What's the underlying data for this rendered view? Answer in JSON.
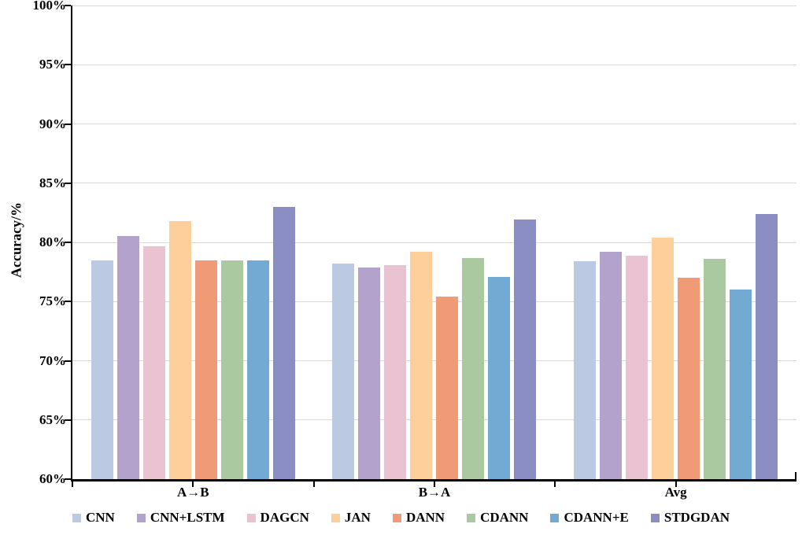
{
  "chart_data": {
    "type": "bar",
    "title": "",
    "xlabel": "",
    "ylabel": "Accuracy/%",
    "ylim": [
      60,
      100
    ],
    "ytick_step": 5,
    "yticks": [
      {
        "value": 100,
        "label": "100%"
      },
      {
        "value": 95,
        "label": "95%"
      },
      {
        "value": 90,
        "label": "90%"
      },
      {
        "value": 85,
        "label": "85%"
      },
      {
        "value": 80,
        "label": "80%"
      },
      {
        "value": 75,
        "label": "75%"
      },
      {
        "value": 70,
        "label": "70%"
      },
      {
        "value": 65,
        "label": "65%"
      },
      {
        "value": 60,
        "label": "60%"
      }
    ],
    "grid": true,
    "legend_position": "bottom",
    "categories": [
      "A→B",
      "B→A",
      "Avg"
    ],
    "series": [
      {
        "name": "CNN",
        "color": "#bcc9e2",
        "values": [
          78.5,
          78.2,
          78.4
        ]
      },
      {
        "name": "CNN+LSTM",
        "color": "#b2a2cc",
        "values": [
          80.5,
          77.9,
          79.2
        ]
      },
      {
        "name": "DAGCN",
        "color": "#eac3d2",
        "values": [
          79.7,
          78.1,
          78.9
        ]
      },
      {
        "name": "JAN",
        "color": "#fdcf9b",
        "values": [
          81.8,
          79.2,
          80.4
        ]
      },
      {
        "name": "DANN",
        "color": "#f19a76",
        "values": [
          78.5,
          75.4,
          77.0
        ]
      },
      {
        "name": "CDANN",
        "color": "#aac9a1",
        "values": [
          78.5,
          78.7,
          78.6
        ]
      },
      {
        "name": "CDANN+E",
        "color": "#73aad4",
        "values": [
          78.5,
          77.1,
          76.0
        ]
      },
      {
        "name": "STDGDAN",
        "color": "#8a8ec3",
        "values": [
          83.0,
          81.9,
          82.4
        ]
      }
    ],
    "colors": {
      "gridline": "#d9d9d9",
      "axis": "#000000",
      "text": "#000000",
      "background": "#ffffff"
    }
  }
}
